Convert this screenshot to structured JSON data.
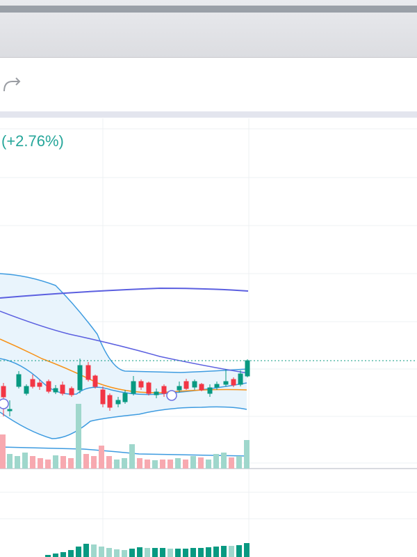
{
  "chart": {
    "change": "(+2.76%)"
  }
}
